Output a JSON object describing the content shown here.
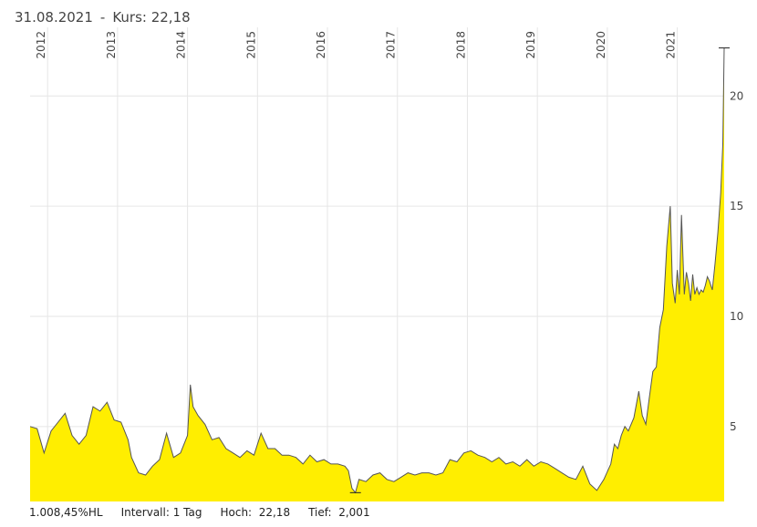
{
  "header": {
    "date": "31.08.2021",
    "separator": "-",
    "price_label": "Kurs: 22,18"
  },
  "footer": {
    "change": "1.008,45%HL",
    "interval": "Intervall: 1 Tag",
    "high": "Hoch:  22,18",
    "low": "Tief:  2,001"
  },
  "colors": {
    "area_fill": "#ffee00",
    "line": "#555555",
    "grid": "#e6e6e6"
  },
  "chart_data": {
    "type": "area",
    "x_ticks": [
      "2012",
      "2013",
      "2014",
      "2015",
      "2016",
      "2017",
      "2018",
      "2019",
      "2020",
      "2021"
    ],
    "y_ticks": [
      5,
      10,
      15,
      20
    ],
    "y_tick_labels": [
      "5",
      "10",
      "15",
      "20"
    ],
    "ylim": [
      1.6,
      22.7
    ],
    "xlim": [
      2011.75,
      2021.67
    ],
    "grid": true,
    "series": [
      {
        "x": [
          2011.75,
          2011.85,
          2011.95,
          2012.05,
          2012.15,
          2012.25,
          2012.35,
          2012.45,
          2012.55,
          2012.65,
          2012.75,
          2012.85,
          2012.95,
          2013.05,
          2013.15,
          2013.2,
          2013.3,
          2013.4,
          2013.5,
          2013.6,
          2013.7,
          2013.8,
          2013.9,
          2014.0,
          2014.04,
          2014.08,
          2014.15,
          2014.25,
          2014.35,
          2014.45,
          2014.55,
          2014.65,
          2014.75,
          2014.85,
          2014.95,
          2015.05,
          2015.15,
          2015.25,
          2015.35,
          2015.45,
          2015.55,
          2015.65,
          2015.75,
          2015.85,
          2015.95,
          2016.05,
          2016.15,
          2016.25,
          2016.3,
          2016.35,
          2016.4,
          2016.45,
          2016.55,
          2016.65,
          2016.75,
          2016.85,
          2016.95,
          2017.05,
          2017.15,
          2017.25,
          2017.35,
          2017.45,
          2017.55,
          2017.65,
          2017.75,
          2017.85,
          2017.95,
          2018.05,
          2018.15,
          2018.25,
          2018.35,
          2018.45,
          2018.55,
          2018.65,
          2018.75,
          2018.85,
          2018.95,
          2019.05,
          2019.15,
          2019.25,
          2019.35,
          2019.45,
          2019.55,
          2019.65,
          2019.75,
          2019.85,
          2019.95,
          2020.05,
          2020.1,
          2020.15,
          2020.2,
          2020.25,
          2020.3,
          2020.38,
          2020.45,
          2020.5,
          2020.55,
          2020.6,
          2020.65,
          2020.7,
          2020.75,
          2020.8,
          2020.85,
          2020.9,
          2020.93,
          2020.97,
          2021.0,
          2021.03,
          2021.06,
          2021.1,
          2021.13,
          2021.16,
          2021.19,
          2021.22,
          2021.25,
          2021.28,
          2021.31,
          2021.34,
          2021.37,
          2021.4,
          2021.43,
          2021.46,
          2021.5,
          2021.54,
          2021.58,
          2021.62,
          2021.65,
          2021.67
        ],
        "y": [
          5.0,
          4.9,
          3.8,
          4.8,
          5.2,
          5.6,
          4.6,
          4.2,
          4.6,
          5.9,
          5.7,
          6.1,
          5.3,
          5.2,
          4.4,
          3.6,
          2.9,
          2.8,
          3.2,
          3.5,
          4.7,
          3.6,
          3.8,
          4.6,
          6.9,
          5.9,
          5.5,
          5.1,
          4.4,
          4.5,
          4.0,
          3.8,
          3.6,
          3.9,
          3.7,
          4.7,
          4.0,
          4.0,
          3.7,
          3.7,
          3.6,
          3.3,
          3.7,
          3.4,
          3.5,
          3.3,
          3.3,
          3.2,
          3.0,
          2.2,
          2.0,
          2.6,
          2.5,
          2.8,
          2.9,
          2.6,
          2.5,
          2.7,
          2.9,
          2.8,
          2.9,
          2.9,
          2.8,
          2.9,
          3.5,
          3.4,
          3.8,
          3.9,
          3.7,
          3.6,
          3.4,
          3.6,
          3.3,
          3.4,
          3.2,
          3.5,
          3.2,
          3.4,
          3.3,
          3.1,
          2.9,
          2.7,
          2.6,
          3.2,
          2.4,
          2.1,
          2.6,
          3.3,
          4.2,
          4.0,
          4.6,
          5.0,
          4.8,
          5.4,
          6.6,
          5.5,
          5.1,
          6.3,
          7.5,
          7.7,
          9.5,
          10.3,
          13.2,
          15.0,
          11.5,
          10.6,
          12.1,
          11.0,
          14.6,
          11.0,
          12.0,
          11.5,
          10.7,
          11.9,
          11.0,
          11.3,
          11.0,
          11.2,
          11.1,
          11.4,
          11.8,
          11.6,
          11.2,
          12.4,
          13.8,
          15.6,
          17.8,
          22.18
        ]
      }
    ],
    "high_value": 22.18,
    "low_value": 2.001
  }
}
